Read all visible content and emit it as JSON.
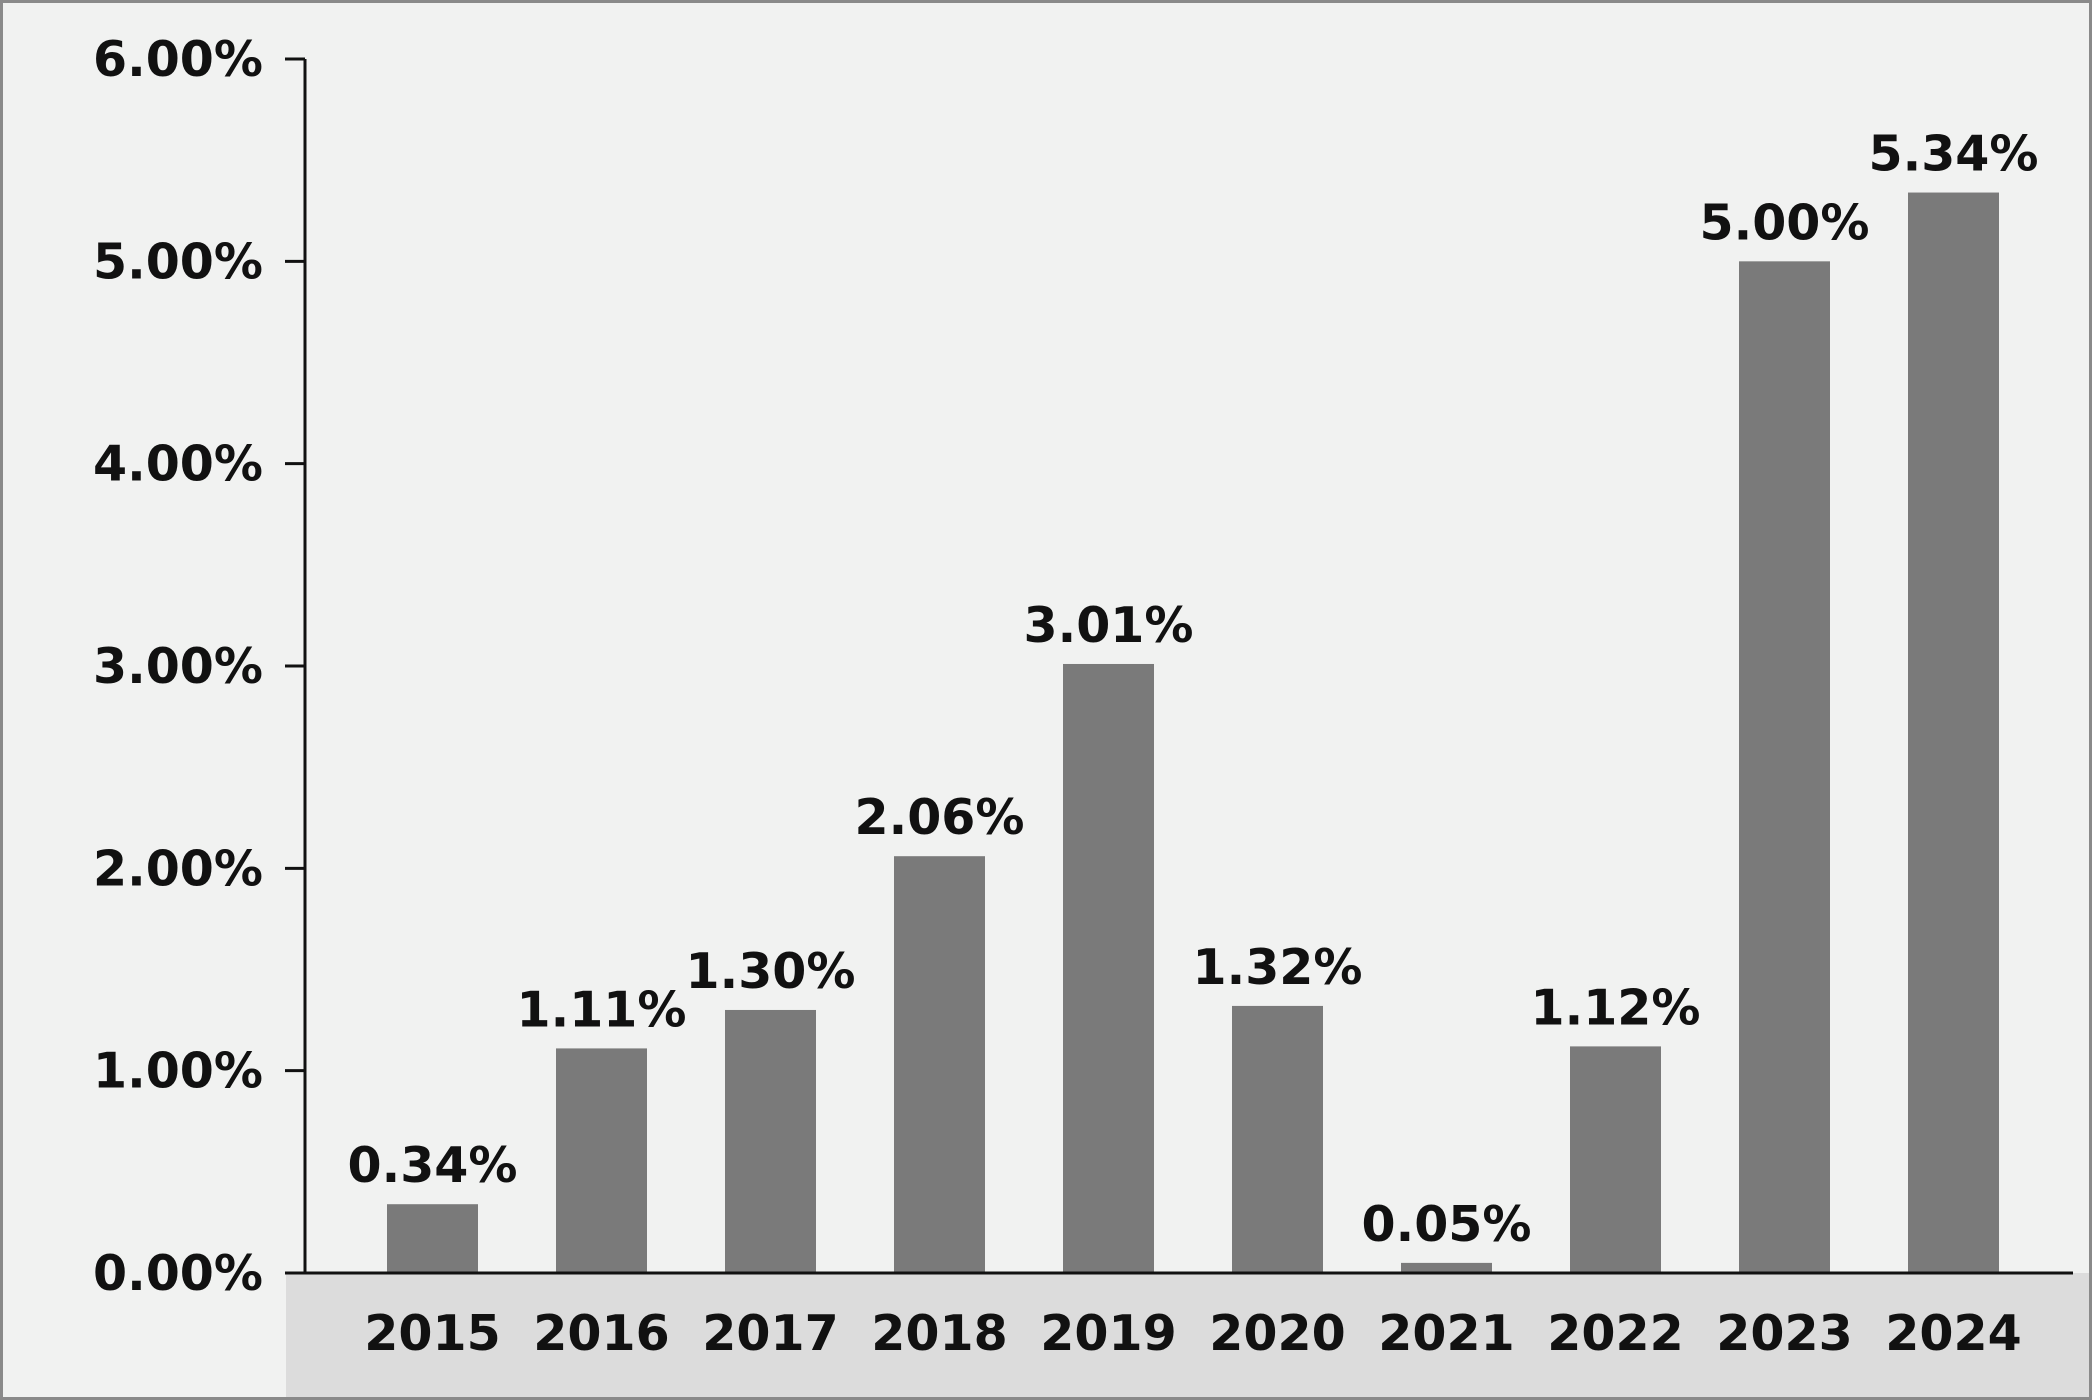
{
  "chart_data": {
    "type": "bar",
    "categories": [
      "2015",
      "2016",
      "2017",
      "2018",
      "2019",
      "2020",
      "2021",
      "2022",
      "2023",
      "2024"
    ],
    "values": [
      0.34,
      1.11,
      1.3,
      2.06,
      3.01,
      1.32,
      0.05,
      1.12,
      5.0,
      5.34
    ],
    "data_labels": [
      "0.34%",
      "1.11%",
      "1.30%",
      "2.06%",
      "3.01%",
      "1.32%",
      "0.05%",
      "1.12%",
      "5.00%",
      "5.34%"
    ],
    "y_ticks": [
      0,
      1,
      2,
      3,
      4,
      5,
      6
    ],
    "y_tick_labels": [
      "0.00%",
      "1.00%",
      "2.00%",
      "3.00%",
      "4.00%",
      "5.00%",
      "6.00%"
    ],
    "ylim": [
      0,
      6
    ],
    "title": "",
    "xlabel": "",
    "ylabel": "",
    "grid": false,
    "legend": "none",
    "colors": {
      "bar": "#7a7a7a",
      "background": "#f1f2f1",
      "x_axis_band": "#dcdcdc",
      "axis": "#111111",
      "text": "#111111",
      "border": "#8a8a8a"
    }
  }
}
